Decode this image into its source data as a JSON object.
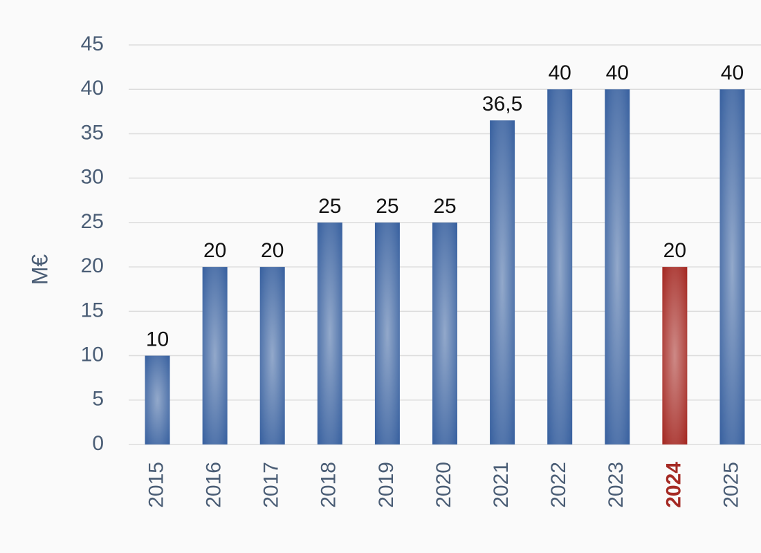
{
  "chart_data": {
    "type": "bar",
    "y_label": "M€",
    "categories": [
      "2015",
      "2016",
      "2017",
      "2018",
      "2019",
      "2020",
      "2021",
      "2022",
      "2023",
      "2024",
      "2025"
    ],
    "values": [
      10,
      20,
      20,
      25,
      25,
      25,
      36.5,
      40,
      40,
      20,
      40
    ],
    "value_labels": [
      "10",
      "20",
      "20",
      "25",
      "25",
      "25",
      "36,5",
      "40",
      "40",
      "20",
      "40"
    ],
    "colors": [
      "#3a62a0",
      "#3a62a0",
      "#3a62a0",
      "#3a62a0",
      "#3a62a0",
      "#3a62a0",
      "#3a62a0",
      "#3a62a0",
      "#3a62a0",
      "#a52a24",
      "#3a62a0"
    ],
    "highlight_color": "#a52a24",
    "ylim": [
      0,
      45
    ],
    "yticks": [
      0,
      5,
      10,
      15,
      20,
      25,
      30,
      35,
      40,
      45
    ],
    "grid": true
  }
}
